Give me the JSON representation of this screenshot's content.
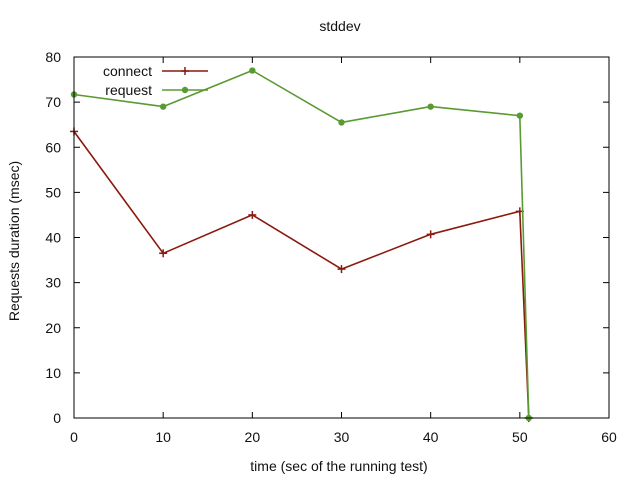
{
  "chart_data": {
    "type": "line",
    "title": "stddev",
    "xlabel": "time (sec of the running test)",
    "ylabel": "Requests duration (msec)",
    "xlim": [
      0,
      60
    ],
    "ylim": [
      0,
      80
    ],
    "xticks": [
      "0",
      "10",
      "20",
      "30",
      "40",
      "50",
      "60"
    ],
    "yticks": [
      "0",
      "10",
      "20",
      "30",
      "40",
      "50",
      "60",
      "70",
      "80"
    ],
    "grid": false,
    "legend_position": "top-left",
    "series": [
      {
        "name": "connect",
        "color": "#8b1a0e",
        "marker": "plus",
        "x": [
          0,
          10,
          20,
          30,
          40,
          50,
          51
        ],
        "y": [
          63.5,
          36.5,
          45,
          33,
          40.7,
          45.8,
          0
        ]
      },
      {
        "name": "request",
        "color": "#5a9a32",
        "marker": "dot",
        "x": [
          0,
          10,
          20,
          30,
          40,
          50,
          51
        ],
        "y": [
          71.7,
          69,
          77,
          65.5,
          69,
          67,
          0
        ]
      }
    ]
  }
}
